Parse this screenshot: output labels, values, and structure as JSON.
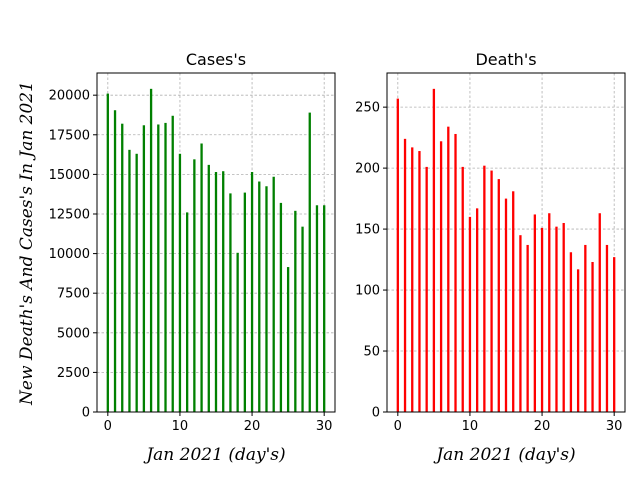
{
  "chart_data": [
    {
      "type": "bar",
      "title": "Cases's",
      "xlabel": "Jan 2021 (day's)",
      "ylabel": "New Death's And Cases's In Jan 2021",
      "color": "#008000",
      "xlim": [
        -1.5,
        31.5
      ],
      "ylim": [
        0,
        21400
      ],
      "grid": true,
      "xticks": [
        0,
        10,
        20,
        30
      ],
      "xtick_labels": [
        "0",
        "10",
        "20",
        "30"
      ],
      "yticks": [
        0,
        2500,
        5000,
        7500,
        10000,
        12500,
        15000,
        17500,
        20000
      ],
      "ytick_labels": [
        "0",
        "2500",
        "5000",
        "7500",
        "10000",
        "12500",
        "15000",
        "17500",
        "20000"
      ],
      "x": [
        0,
        1,
        2,
        3,
        4,
        5,
        6,
        7,
        8,
        9,
        10,
        11,
        12,
        13,
        14,
        15,
        16,
        17,
        18,
        19,
        20,
        21,
        22,
        23,
        24,
        25,
        26,
        27,
        28,
        29,
        30
      ],
      "values": [
        20100,
        19050,
        18200,
        16550,
        16300,
        18100,
        20400,
        18150,
        18250,
        18700,
        16300,
        12600,
        15950,
        16950,
        15600,
        15150,
        15200,
        13800,
        10050,
        13850,
        15150,
        14550,
        14250,
        14850,
        13200,
        9150,
        12700,
        11700,
        18900,
        13050,
        13050
      ]
    },
    {
      "type": "bar",
      "title": "Death's",
      "xlabel": "Jan 2021 (day's)",
      "ylabel": "",
      "color": "#ff0000",
      "xlim": [
        -1.5,
        31.5
      ],
      "ylim": [
        0,
        278
      ],
      "grid": true,
      "xticks": [
        0,
        10,
        20,
        30
      ],
      "xtick_labels": [
        "0",
        "10",
        "20",
        "30"
      ],
      "yticks": [
        0,
        50,
        100,
        150,
        200,
        250
      ],
      "ytick_labels": [
        "0",
        "50",
        "100",
        "150",
        "200",
        "250"
      ],
      "x": [
        0,
        1,
        2,
        3,
        4,
        5,
        6,
        7,
        8,
        9,
        10,
        11,
        12,
        13,
        14,
        15,
        16,
        17,
        18,
        19,
        20,
        21,
        22,
        23,
        24,
        25,
        26,
        27,
        28,
        29,
        30
      ],
      "values": [
        257,
        224,
        217,
        214,
        201,
        265,
        222,
        234,
        228,
        201,
        160,
        167,
        202,
        198,
        191,
        175,
        181,
        145,
        137,
        162,
        151,
        163,
        152,
        155,
        131,
        117,
        137,
        123,
        163,
        137,
        127
      ]
    }
  ]
}
